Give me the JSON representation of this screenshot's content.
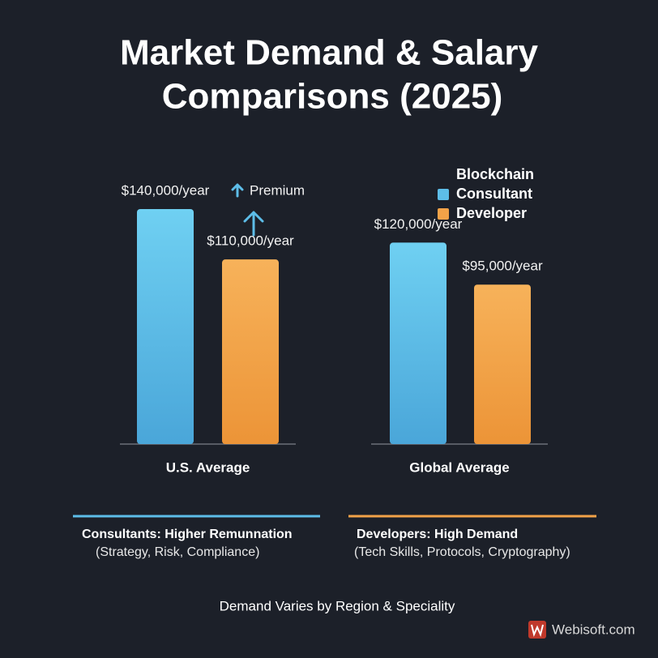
{
  "chart_data": {
    "type": "bar",
    "title": [
      "Market Demand & Salary",
      "Comparisons (2025)"
    ],
    "categories": [
      "U.S. Average",
      "Global Average"
    ],
    "series": [
      {
        "name": "Consultant",
        "color": "#5dbde8",
        "values": [
          140000,
          120000
        ],
        "value_labels": [
          "$140,000/year",
          "$120,000/year"
        ]
      },
      {
        "name": "Developer",
        "color": "#f2a248",
        "values": [
          110000,
          95000
        ],
        "value_labels": [
          "$110,000/year",
          "$95,000/year"
        ]
      }
    ],
    "legend_title": "Blockchain",
    "annotation": "Premium",
    "notes": [
      {
        "title": "Consultants: Higher Remunnation",
        "detail": "(Strategy, Risk, Compliance)"
      },
      {
        "title": "Developers: High Demand",
        "detail": "(Tech Skills, Protocols, Cryptography)"
      }
    ],
    "footer": "Demand Varies by Region & Speciality",
    "brand": "Webisoft.com"
  }
}
